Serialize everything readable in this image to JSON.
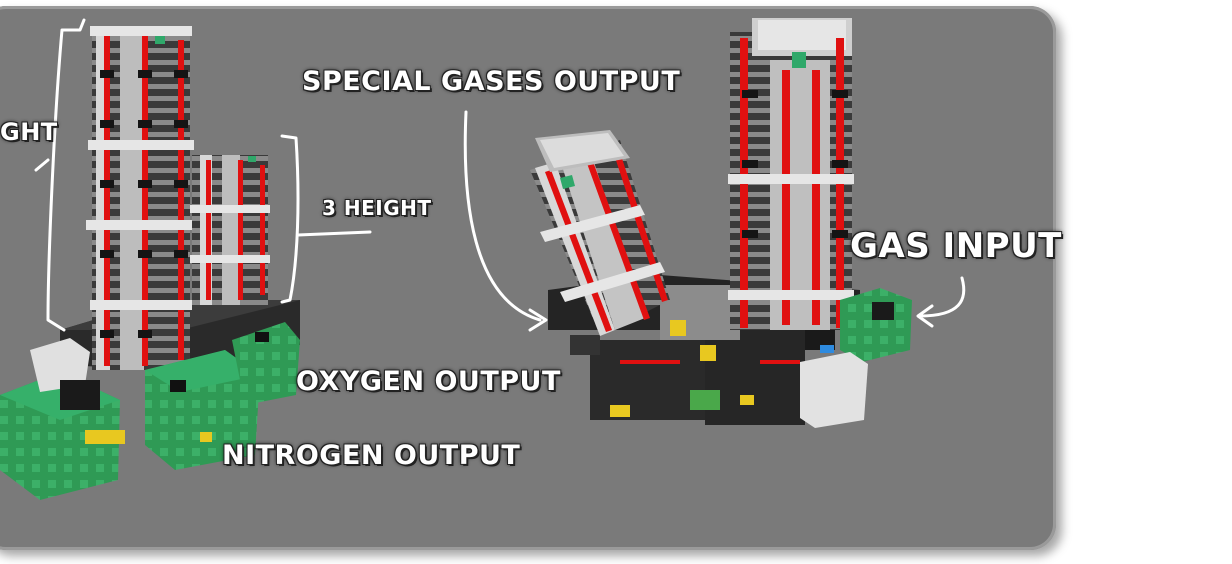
{
  "labels": {
    "height_left": "GHT",
    "height_small": "3 HEIGHT",
    "special_gases_output": "SPECIAL GASES OUTPUT",
    "gas_input": "GAS INPUT",
    "oxygen_output": "OXYGEN OUTPUT",
    "nitrogen_output": "NITROGEN OUTPUT"
  },
  "colors": {
    "panel_gray": "#7a7a7a",
    "frame_white": "#d8d8d8",
    "pipe_red": "#e01010",
    "tank_green": "#2f9a55",
    "machine_black": "#1e1e1e",
    "annotation_white": "#ffffff"
  }
}
